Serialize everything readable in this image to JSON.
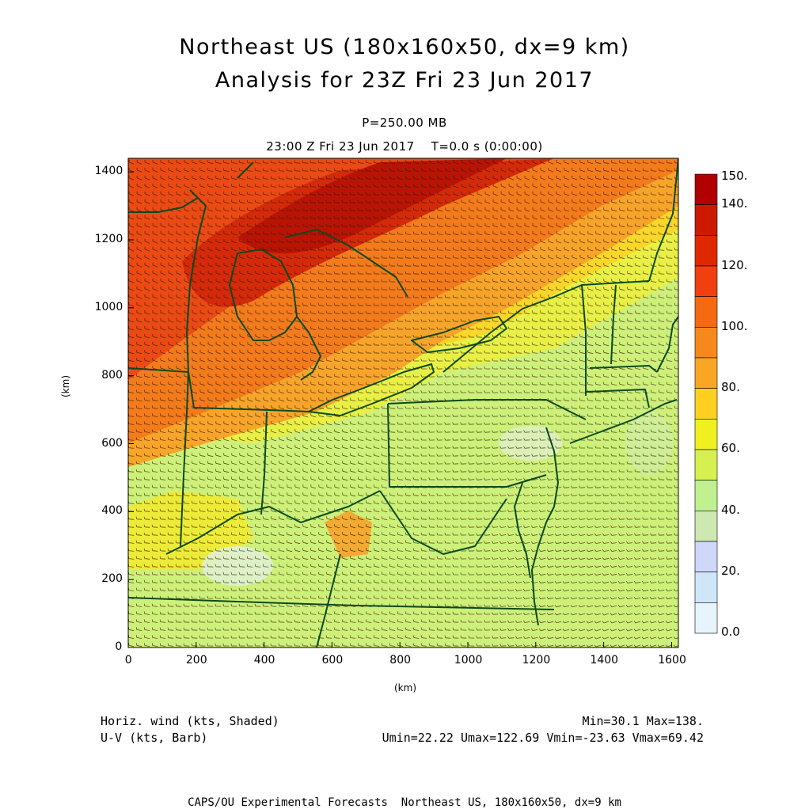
{
  "title_line1": "Northeast US (180x160x50, dx=9 km)",
  "title_line2": "Analysis for 23Z Fri 23 Jun 2017",
  "pressure_level": "P=250.00 MB",
  "valid_time": "23:00 Z Fri 23 Jun 2017    T=0.0 s (0:00:00)",
  "x_axis_unit": "(km)",
  "y_axis_unit": "(km)",
  "x_ticks": [
    "0",
    "200",
    "400",
    "600",
    "800",
    "1000",
    "1200",
    "1400",
    "1600"
  ],
  "y_ticks": [
    "0",
    "200",
    "400",
    "600",
    "800",
    "1000",
    "1200",
    "1400"
  ],
  "colorbar": {
    "labels": [
      "150.",
      "140.",
      "120.",
      "100.",
      "80.",
      "60.",
      "40.",
      "20.",
      "0.0"
    ],
    "colors_top_to_bottom": [
      "#b20000",
      "#cc1a00",
      "#e02800",
      "#f04010",
      "#f56a10",
      "#f7891c",
      "#f9a625",
      "#fdd020",
      "#f0f020",
      "#d6f050",
      "#c0f090",
      "#cde8b0",
      "#cfd8f8",
      "#cfe6f8",
      "#e6f4fb"
    ]
  },
  "legend": {
    "left_line1": "Horiz. wind (kts, Shaded)",
    "left_line2": "U-V (kts, Barb)",
    "right_line1": "Min=30.1 Max=138.",
    "right_line2": "Umin=22.22 Umax=122.69 Vmin=-23.63 Vmax=69.42"
  },
  "footer": "CAPS/OU Experimental Forecasts  Northeast US, 180x160x50, dx=9 km",
  "map_colors": {
    "boundary": "#0b4a1c",
    "barb": "#3a1a00"
  }
}
